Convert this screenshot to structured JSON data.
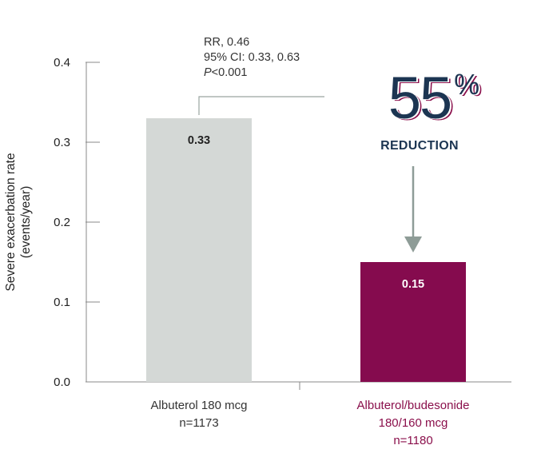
{
  "chart_data": {
    "type": "bar",
    "ylabel_lines": [
      "Severe exacerbation rate",
      "(events/year)"
    ],
    "ylim": [
      0,
      0.4
    ],
    "yticks": [
      "0.0",
      "0.1",
      "0.2",
      "0.3",
      "0.4"
    ],
    "ytick_values": [
      0,
      0.1,
      0.2,
      0.3,
      0.4
    ],
    "categories": [
      {
        "lines": [
          "Albuterol 180 mcg",
          "n=1173"
        ],
        "color": "#333333"
      },
      {
        "lines": [
          "Albuterol/budesonide",
          "180/160 mcg",
          "n=1180"
        ],
        "color": "#8a0f4b"
      }
    ],
    "values": [
      0.33,
      0.15
    ],
    "value_labels": [
      "0.33",
      "0.15"
    ],
    "bar_colors": [
      "#d4d8d6",
      "#850b4e"
    ],
    "value_label_colors": [
      "#222222",
      "#ffffff"
    ],
    "grid": false,
    "annotation": {
      "lines": [
        {
          "prefix": "",
          "text": "RR, 0.46"
        },
        {
          "prefix": "",
          "text": "95% CI: 0.33, 0.63"
        },
        {
          "prefix": "P",
          "text": "<0.001"
        }
      ]
    },
    "reduction": {
      "percent": "55",
      "percent_sign": "%",
      "label": "REDUCTION",
      "color": "#1c3552",
      "accent": "#8a0f4b"
    },
    "arrow_color": "#8e9c97"
  }
}
